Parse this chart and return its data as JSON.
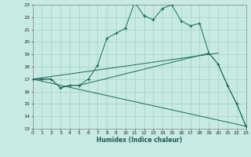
{
  "title": "",
  "xlabel": "Humidex (Indice chaleur)",
  "bg_color": "#c8eae4",
  "grid_color": "#a8d4cc",
  "line_color": "#1a6a5a",
  "x_min": 0,
  "x_max": 23,
  "y_min": 13,
  "y_max": 23,
  "main_x": [
    0,
    1,
    2,
    3,
    4,
    5,
    6,
    7,
    8,
    9,
    10,
    11,
    12,
    13,
    14,
    15,
    16,
    17,
    18,
    19,
    20,
    21,
    22,
    23
  ],
  "main_y": [
    17,
    17,
    17,
    16.3,
    16.5,
    16.5,
    17.0,
    18.1,
    20.3,
    20.7,
    21.1,
    23.2,
    22.1,
    21.8,
    22.7,
    23.0,
    21.7,
    21.3,
    21.5,
    19.1,
    18.2,
    16.5,
    15.0,
    13.2
  ],
  "line2_x": [
    0,
    1,
    2,
    3,
    4,
    5,
    19,
    20,
    21,
    22,
    23
  ],
  "line2_y": [
    17,
    17,
    17,
    16.3,
    16.5,
    16.5,
    19.1,
    18.2,
    16.5,
    15.0,
    13.2
  ],
  "line3_x": [
    0,
    20
  ],
  "line3_y": [
    17,
    19.1
  ],
  "line4_x": [
    0,
    23
  ],
  "line4_y": [
    17,
    13.2
  ]
}
